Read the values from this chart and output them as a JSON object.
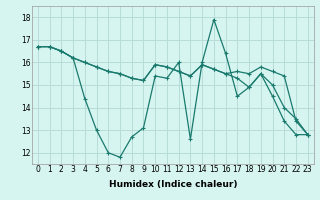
{
  "xlabel": "Humidex (Indice chaleur)",
  "background_color": "#d6f5f0",
  "grid_color": "#b8ddd8",
  "line_color": "#1a7a6e",
  "xlim": [
    -0.5,
    23.5
  ],
  "ylim": [
    11.5,
    18.5
  ],
  "yticks": [
    12,
    13,
    14,
    15,
    16,
    17,
    18
  ],
  "xtick_labels": [
    "0",
    "1",
    "2",
    "3",
    "4",
    "5",
    "6",
    "7",
    "8",
    "9",
    "10",
    "11",
    "12",
    "13",
    "14",
    "15",
    "16",
    "17",
    "18",
    "19",
    "20",
    "21",
    "22",
    "23"
  ],
  "series": [
    [
      16.7,
      16.7,
      16.5,
      16.2,
      14.4,
      13.0,
      12.0,
      11.8,
      12.7,
      13.1,
      15.4,
      15.3,
      16.0,
      12.6,
      16.0,
      17.9,
      16.4,
      14.5,
      14.9,
      15.5,
      14.5,
      13.4,
      12.8,
      12.8
    ],
    [
      16.7,
      16.7,
      16.5,
      16.2,
      16.0,
      15.8,
      15.6,
      15.5,
      15.3,
      15.2,
      15.9,
      15.8,
      15.6,
      15.4,
      15.9,
      15.7,
      15.5,
      15.6,
      15.5,
      15.8,
      15.6,
      15.4,
      13.4,
      12.8
    ],
    [
      16.7,
      16.7,
      16.5,
      16.2,
      16.0,
      15.8,
      15.6,
      15.5,
      15.3,
      15.2,
      15.9,
      15.8,
      15.6,
      15.4,
      15.9,
      15.7,
      15.5,
      15.3,
      14.9,
      15.5,
      15.0,
      14.0,
      13.5,
      12.8
    ]
  ],
  "title_fontsize": 7,
  "xlabel_fontsize": 6.5,
  "tick_fontsize": 5.5
}
